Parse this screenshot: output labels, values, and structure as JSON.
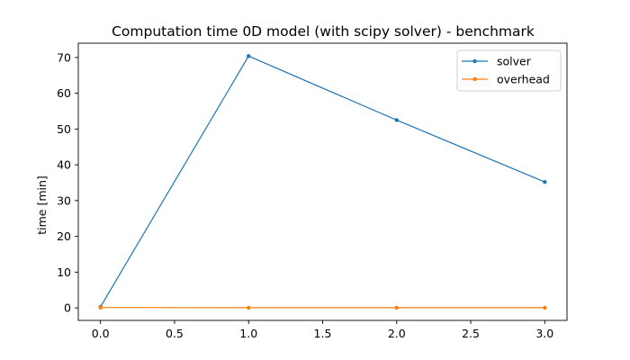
{
  "chart_data": {
    "type": "line",
    "title": "Computation time 0D model (with scipy solver) - benchmark",
    "xlabel": "",
    "ylabel": "time [min]",
    "x": [
      0,
      1,
      2,
      3
    ],
    "xlim": [
      -0.15,
      3.15
    ],
    "ylim": [
      -3.5,
      74
    ],
    "xticks": [
      0.0,
      0.5,
      1.0,
      1.5,
      2.0,
      2.5,
      3.0
    ],
    "xtick_labels": [
      "0.0",
      "0.5",
      "1.0",
      "1.5",
      "2.0",
      "2.5",
      "3.0"
    ],
    "yticks": [
      0,
      10,
      20,
      30,
      40,
      50,
      60,
      70
    ],
    "ytick_labels": [
      "0",
      "10",
      "20",
      "30",
      "40",
      "50",
      "60",
      "70"
    ],
    "grid": false,
    "legend_position": "top-right",
    "series": [
      {
        "name": "solver",
        "color": "#1f77b4",
        "values": [
          0.3,
          70.4,
          52.5,
          35.2
        ]
      },
      {
        "name": "overhead",
        "color": "#ff7f0e",
        "values": [
          0.1,
          0.05,
          0.05,
          0.05
        ]
      }
    ]
  }
}
